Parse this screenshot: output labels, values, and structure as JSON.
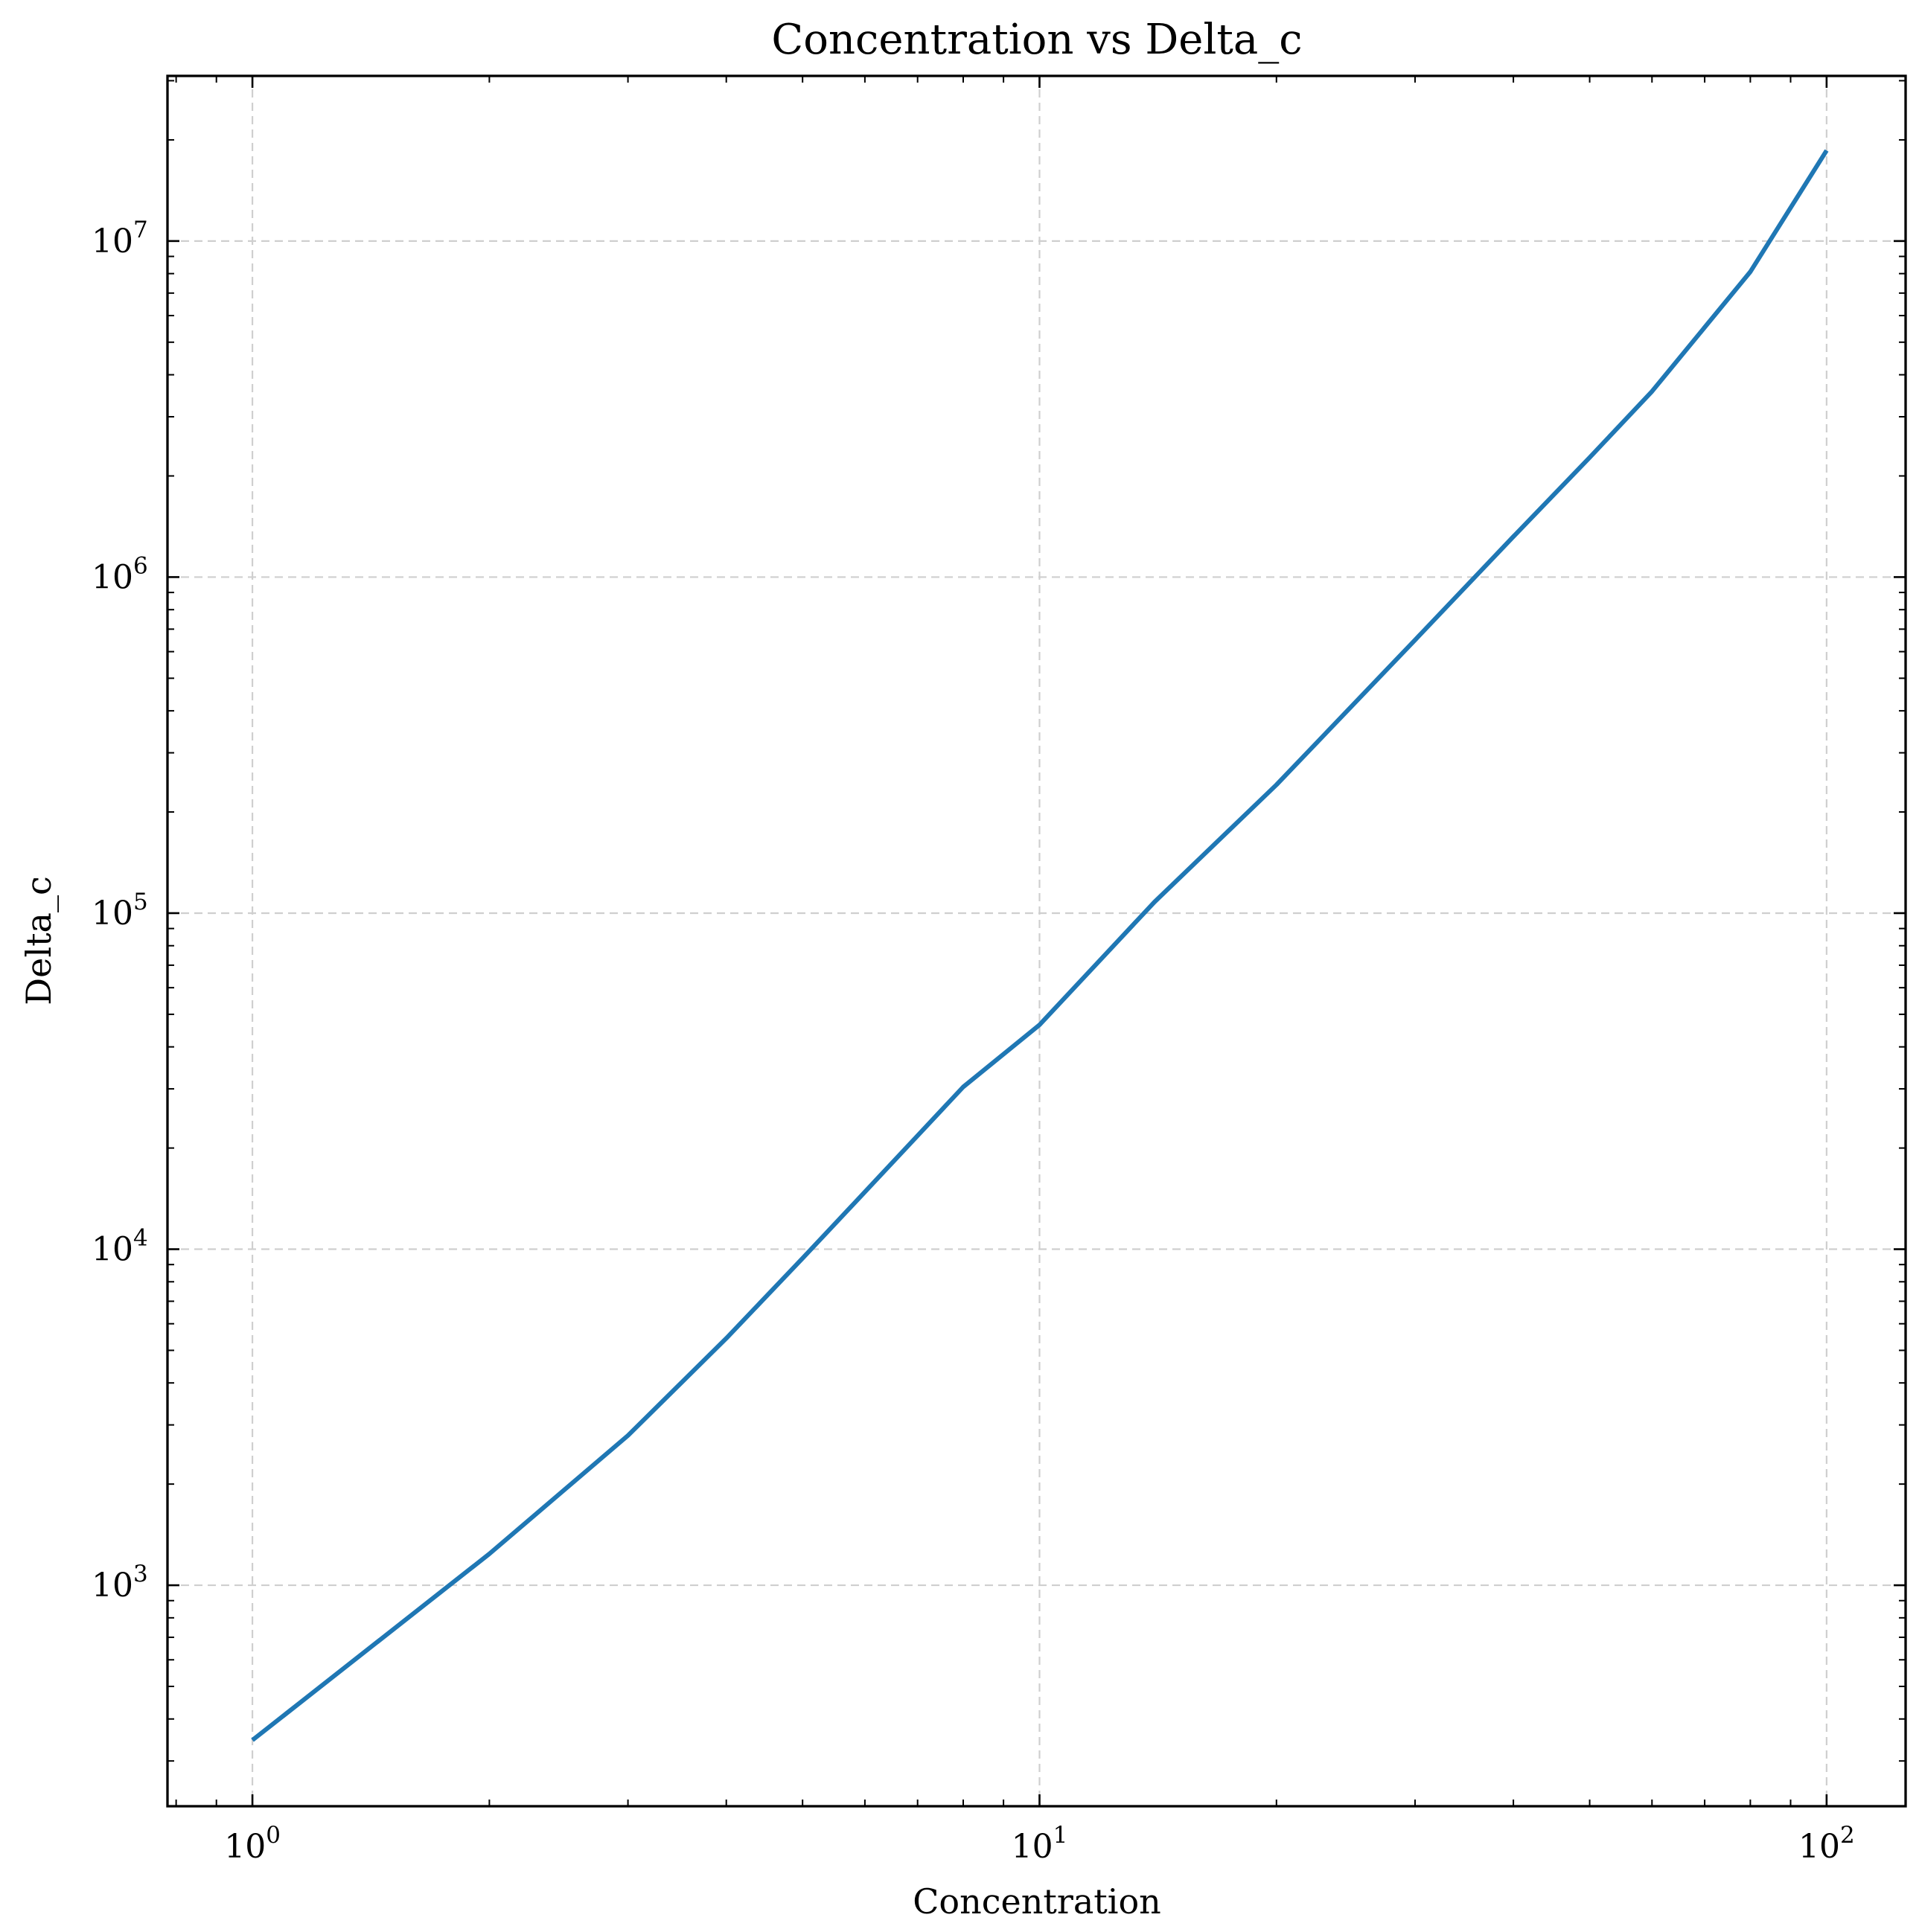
{
  "chart_data": {
    "type": "line",
    "title": "Concentration vs Delta_c",
    "xlabel": "Concentration",
    "ylabel": "Delta_c",
    "xscale": "log",
    "yscale": "log",
    "xlim": [
      0.78,
      126
    ],
    "ylim": [
      220,
      31000000
    ],
    "grid": true,
    "x_ticks": [
      {
        "base": "10",
        "exp": "0",
        "value": 1
      },
      {
        "base": "10",
        "exp": "1",
        "value": 10
      },
      {
        "base": "10",
        "exp": "2",
        "value": 100
      }
    ],
    "y_ticks": [
      {
        "base": "10",
        "exp": "3",
        "value": 1000
      },
      {
        "base": "10",
        "exp": "4",
        "value": 10000
      },
      {
        "base": "10",
        "exp": "5",
        "value": 100000
      },
      {
        "base": "10",
        "exp": "6",
        "value": 1000000
      },
      {
        "base": "10",
        "exp": "7",
        "value": 10000000
      }
    ],
    "series": [
      {
        "color": "#1f77b4",
        "x": [
          1,
          2,
          3,
          4,
          5,
          6,
          8,
          10,
          14,
          20,
          30,
          40,
          50,
          60,
          80,
          100
        ],
        "y": [
          346,
          1240,
          2790,
          5430,
          9400,
          14800,
          30400,
          46500,
          108000,
          241000,
          650000,
          1320000,
          2270000,
          3570000,
          8100000,
          18600000
        ]
      }
    ]
  }
}
